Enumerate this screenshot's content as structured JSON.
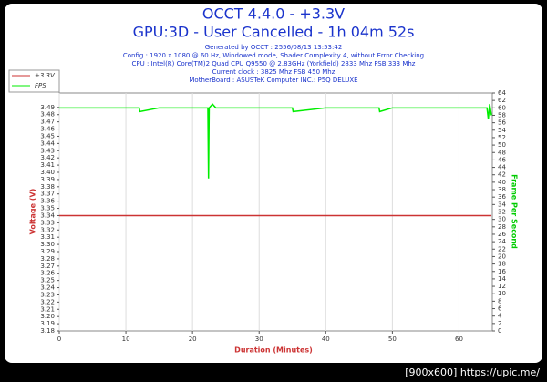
{
  "chart_data": {
    "type": "line",
    "title": "OCCT 4.4.0 - +3.3V",
    "subtitle": "GPU:3D - User Cancelled - 1h 04m 52s",
    "info": [
      "Generated by OCCT : 2556/08/13 13:53:42",
      "Config : 1920 x 1080 @ 60 Hz, Windowed mode, Shader Complexity 4, without Error Checking",
      "CPU : Intel(R) Core(TM)2 Quad CPU Q9550 @ 2.83GHz (Yorkfield) 2833 Mhz FSB 333 Mhz",
      "Current clock : 3825 Mhz FSB 450 Mhz",
      "MotherBoard : ASUSTeK Computer INC.: P5Q DELUXE"
    ],
    "xlabel": "Duration (Minutes)",
    "ylabel": "Voltage (V)",
    "y2label": "Frame Per Second",
    "xlim": [
      0,
      65
    ],
    "xticks": [
      0,
      10,
      20,
      30,
      40,
      50,
      60
    ],
    "ylim": [
      3.18,
      3.51
    ],
    "yticks": [
      3.18,
      3.19,
      {
        "value": 3.2,
        "label": "3.20"
      },
      3.21,
      3.22,
      3.23,
      3.24,
      3.25,
      3.26,
      3.27,
      3.28,
      3.29,
      {
        "value": 3.3,
        "label": "3.30"
      },
      3.31,
      3.32,
      3.33,
      3.34,
      3.35,
      3.36,
      3.37,
      3.38,
      3.39,
      {
        "value": 3.4,
        "label": "3.40"
      },
      3.41,
      3.42,
      3.43,
      3.44,
      3.45,
      3.46,
      3.47,
      3.48,
      3.49
    ],
    "y2lim": [
      0,
      64
    ],
    "y2ticks": [
      0,
      2,
      4,
      6,
      8,
      10,
      12,
      14,
      16,
      18,
      20,
      22,
      24,
      26,
      28,
      30,
      32,
      34,
      36,
      38,
      40,
      42,
      44,
      46,
      48,
      50,
      52,
      54,
      56,
      58,
      60,
      62,
      64
    ],
    "grid": true,
    "legend": "top-left",
    "series": [
      {
        "name": "+3.3V",
        "color": "#cc3333",
        "x": [
          0,
          64.87
        ],
        "values": [
          3.34,
          3.34
        ]
      },
      {
        "name": "FPS",
        "color": "#00ee00",
        "axis": "y2",
        "x": [
          0,
          5,
          10,
          12,
          12.1,
          15,
          20,
          22.3,
          22.4,
          22.5,
          23,
          23.5,
          25,
          30,
          35,
          35.1,
          40,
          45,
          48,
          48.1,
          50,
          55,
          60,
          64.2,
          64.4,
          64.6,
          64.87
        ],
        "values": [
          60,
          60,
          60,
          60,
          59,
          60,
          60,
          60,
          41,
          60,
          61,
          60,
          60,
          60,
          60,
          59,
          60,
          60,
          60,
          59,
          60,
          60,
          60,
          60,
          57,
          61,
          58
        ]
      }
    ],
    "watermark": "[900x600] https://upic.me/"
  }
}
